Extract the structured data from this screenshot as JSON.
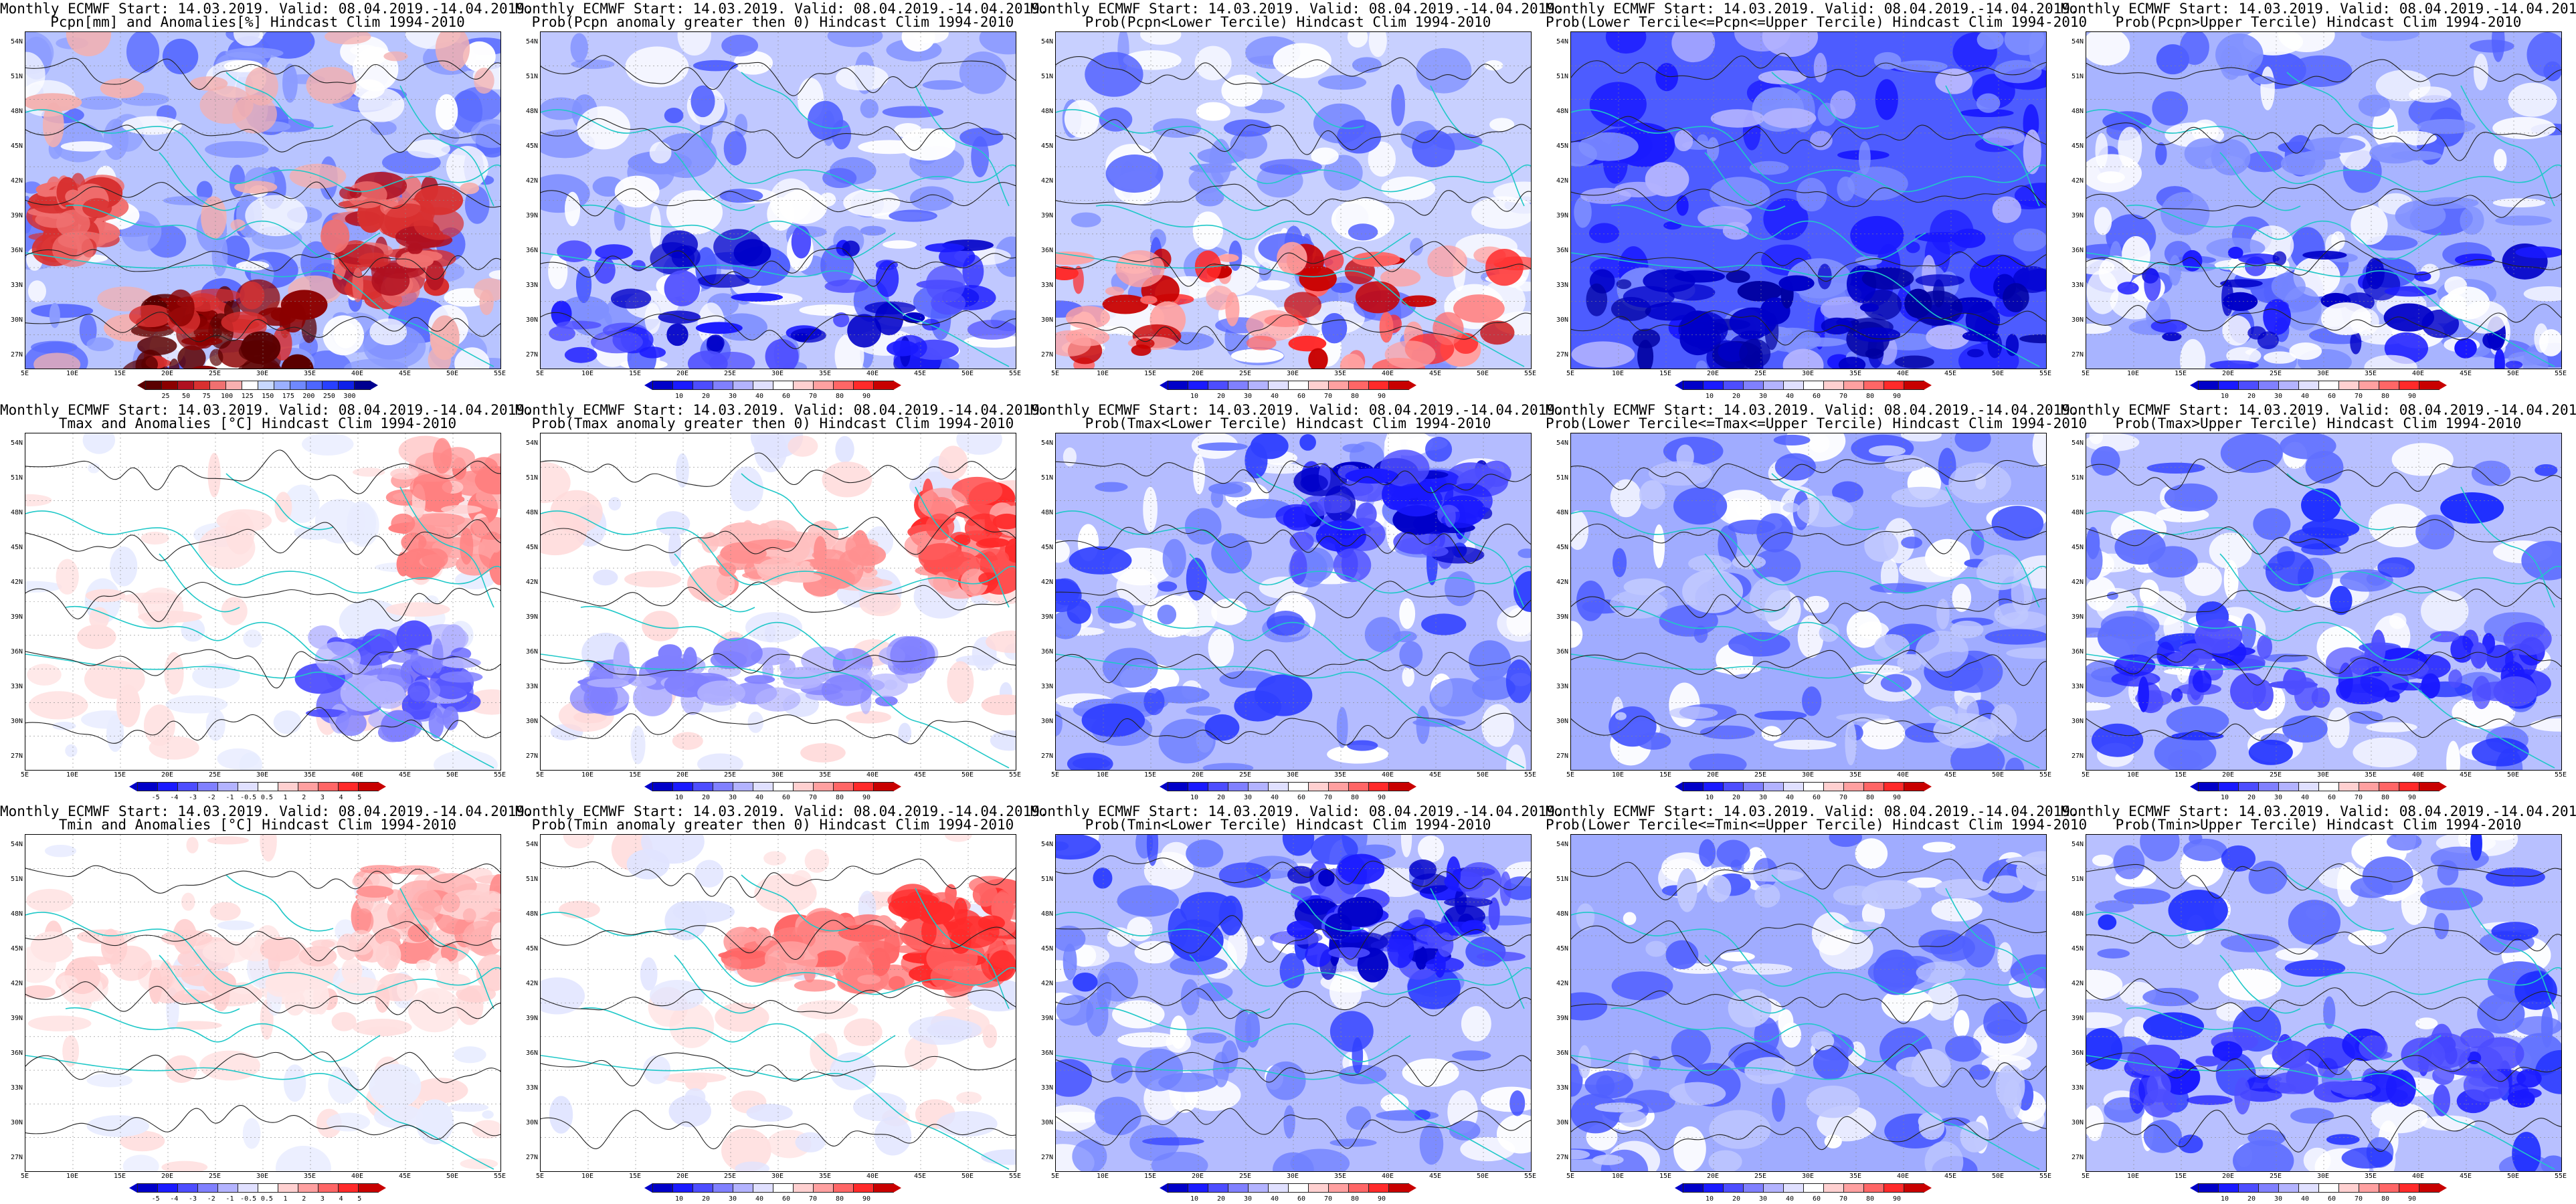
{
  "common": {
    "title_line1": "Monthly ECMWF Start: 14.03.2019. Valid: 08.04.2019.-14.04.2019.",
    "lat_labels": [
      "54N",
      "51N",
      "48N",
      "45N",
      "42N",
      "39N",
      "36N",
      "33N",
      "30N",
      "27N"
    ],
    "lon_labels": [
      "5E",
      "10E",
      "15E",
      "20E",
      "25E",
      "30E",
      "35E",
      "40E",
      "45E",
      "50E",
      "55E"
    ]
  },
  "colorbars": {
    "pcpn_anom": {
      "colors": [
        "#5a0000",
        "#8b0000",
        "#b01020",
        "#d83030",
        "#f07070",
        "#f8b0b0",
        "#ffffff",
        "#c8d8ff",
        "#9bb0ff",
        "#6f88ff",
        "#4d66ff",
        "#2840ff",
        "#0f20e8",
        "#000090"
      ],
      "ticks": [
        "25",
        "50",
        "75",
        "100",
        "125",
        "150",
        "175",
        "200",
        "250",
        "300"
      ]
    },
    "prob": {
      "colors": [
        "#0000c8",
        "#1a1aff",
        "#4d4dff",
        "#8080ff",
        "#b3b3ff",
        "#e0e0ff",
        "#ffffff",
        "#ffd0d0",
        "#ffa0a0",
        "#ff6666",
        "#ff2a2a",
        "#c80000"
      ],
      "ticks": [
        "10",
        "20",
        "30",
        "40",
        "60",
        "70",
        "80",
        "90"
      ]
    },
    "temp_anom": {
      "colors": [
        "#0000c8",
        "#1a1aff",
        "#4d4dff",
        "#8080ff",
        "#b3b3ff",
        "#e0e0ff",
        "#ffffff",
        "#ffd0d0",
        "#ffa0a0",
        "#ff6666",
        "#ff2a2a",
        "#c80000"
      ],
      "ticks": [
        "-5",
        "-4",
        "-3",
        "-2",
        "-1",
        "-0.5",
        "0.5",
        "1",
        "2",
        "3",
        "4",
        "5"
      ]
    }
  },
  "panels": [
    {
      "title2": "Pcpn[mm] and Anomalies[%] Hindcast Clim 1994-2010",
      "cbar": "pcpn_anom",
      "style": "pcpn"
    },
    {
      "title2": "Prob(Pcpn anomaly greater then 0) Hindcast Clim 1994-2010",
      "cbar": "prob",
      "style": "pprob_gt0"
    },
    {
      "title2": "Prob(Pcpn<Lower Tercile) Hindcast Clim 1994-2010",
      "cbar": "prob",
      "style": "pprob_low"
    },
    {
      "title2": "Prob(Lower Tercile<=Pcpn<=Upper Tercile) Hindcast Clim 1994-2010",
      "cbar": "prob",
      "style": "pprob_mid"
    },
    {
      "title2": "Prob(Pcpn>Upper Tercile) Hindcast Clim 1994-2010",
      "cbar": "prob",
      "style": "pprob_up"
    },
    {
      "title2": "Tmax and Anomalies [°C] Hindcast Clim 1994-2010",
      "cbar": "temp_anom",
      "style": "tanom"
    },
    {
      "title2": "Prob(Tmax anomaly greater then 0) Hindcast Clim 1994-2010",
      "cbar": "prob",
      "style": "tprob_gt0"
    },
    {
      "title2": "Prob(Tmax<Lower Tercile) Hindcast Clim 1994-2010",
      "cbar": "prob",
      "style": "tprob_low"
    },
    {
      "title2": "Prob(Lower Tercile<=Tmax<=Upper Tercile) Hindcast Clim 1994-2010",
      "cbar": "prob",
      "style": "tprob_mid"
    },
    {
      "title2": "Prob(Tmax>Upper Tercile) Hindcast Clim 1994-2010",
      "cbar": "prob",
      "style": "tprob_up"
    },
    {
      "title2": "Tmin and Anomalies [°C] Hindcast Clim 1994-2010",
      "cbar": "temp_anom",
      "style": "tanom2"
    },
    {
      "title2": "Prob(Tmin anomaly greater then 0) Hindcast Clim 1994-2010",
      "cbar": "prob",
      "style": "tprob_gt0b"
    },
    {
      "title2": "Prob(Tmin<Lower Tercile) Hindcast Clim 1994-2010",
      "cbar": "prob",
      "style": "tprob_low"
    },
    {
      "title2": "Prob(Lower Tercile<=Tmin<=Upper Tercile) Hindcast Clim 1994-2010",
      "cbar": "prob",
      "style": "tprob_mid"
    },
    {
      "title2": "Prob(Tmin>Upper Tercile) Hindcast Clim 1994-2010",
      "cbar": "prob",
      "style": "tprob_up"
    }
  ]
}
